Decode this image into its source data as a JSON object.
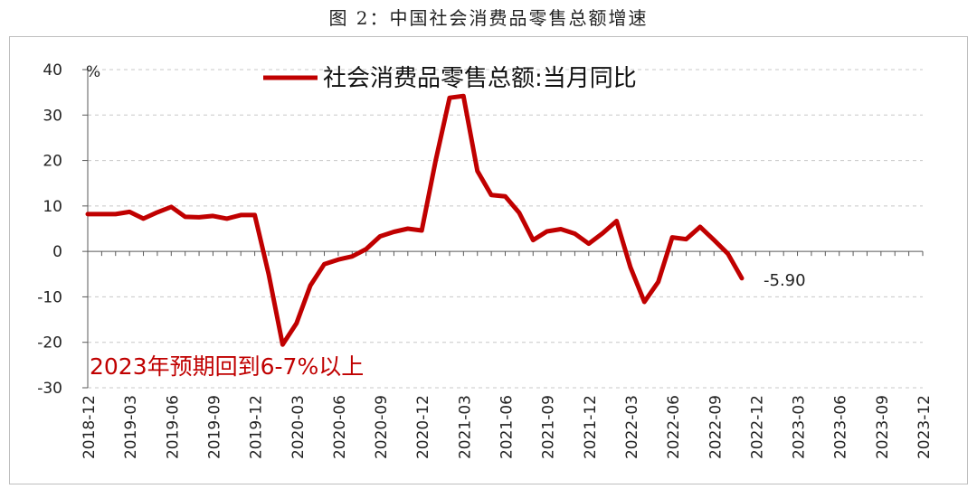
{
  "title": "图 2：中国社会消费品零售总额增速",
  "chart_data": {
    "type": "line",
    "y_unit_label": "%",
    "ylim": [
      -30,
      40
    ],
    "yticks": [
      40,
      30,
      20,
      10,
      0,
      -10,
      -20,
      -30
    ],
    "grid": "horizontal-dashed",
    "legend_position": "top-center",
    "x_tick_labels": [
      "2018-12",
      "2019-03",
      "2019-06",
      "2019-09",
      "2019-12",
      "2020-03",
      "2020-06",
      "2020-09",
      "2020-12",
      "2021-03",
      "2021-06",
      "2021-09",
      "2021-12",
      "2022-03",
      "2022-06",
      "2022-09",
      "2022-12",
      "2023-03",
      "2023-06",
      "2023-09",
      "2023-12"
    ],
    "series": [
      {
        "name": "社会消费品零售总额:当月同比",
        "color": "#c00000",
        "x": [
          "2018-12",
          "2019-01",
          "2019-02",
          "2019-03",
          "2019-04",
          "2019-05",
          "2019-06",
          "2019-07",
          "2019-08",
          "2019-09",
          "2019-10",
          "2019-11",
          "2019-12",
          "2020-01",
          "2020-02",
          "2020-03",
          "2020-04",
          "2020-05",
          "2020-06",
          "2020-07",
          "2020-08",
          "2020-09",
          "2020-10",
          "2020-11",
          "2020-12",
          "2021-01",
          "2021-02",
          "2021-03",
          "2021-04",
          "2021-05",
          "2021-06",
          "2021-07",
          "2021-08",
          "2021-09",
          "2021-10",
          "2021-11",
          "2021-12",
          "2022-01",
          "2022-02",
          "2022-03",
          "2022-04",
          "2022-05",
          "2022-06",
          "2022-07",
          "2022-08",
          "2022-09",
          "2022-10",
          "2022-11"
        ],
        "values": [
          8.2,
          8.2,
          8.2,
          8.7,
          7.2,
          8.6,
          9.8,
          7.6,
          7.5,
          7.8,
          7.2,
          8.0,
          8.0,
          -5.0,
          -20.5,
          -15.8,
          -7.5,
          -2.8,
          -1.8,
          -1.1,
          0.5,
          3.3,
          4.3,
          5.0,
          4.6,
          20.0,
          33.8,
          34.2,
          17.7,
          12.4,
          12.1,
          8.5,
          2.5,
          4.4,
          4.9,
          3.9,
          1.7,
          4.0,
          6.7,
          -3.5,
          -11.1,
          -6.7,
          3.1,
          2.7,
          5.4,
          2.5,
          -0.5,
          -5.9
        ]
      }
    ],
    "annotations": [
      {
        "text": "-5.90",
        "color": "#222222"
      },
      {
        "text": "2023年预期回到6-7%以上",
        "color": "#c00000"
      }
    ]
  }
}
